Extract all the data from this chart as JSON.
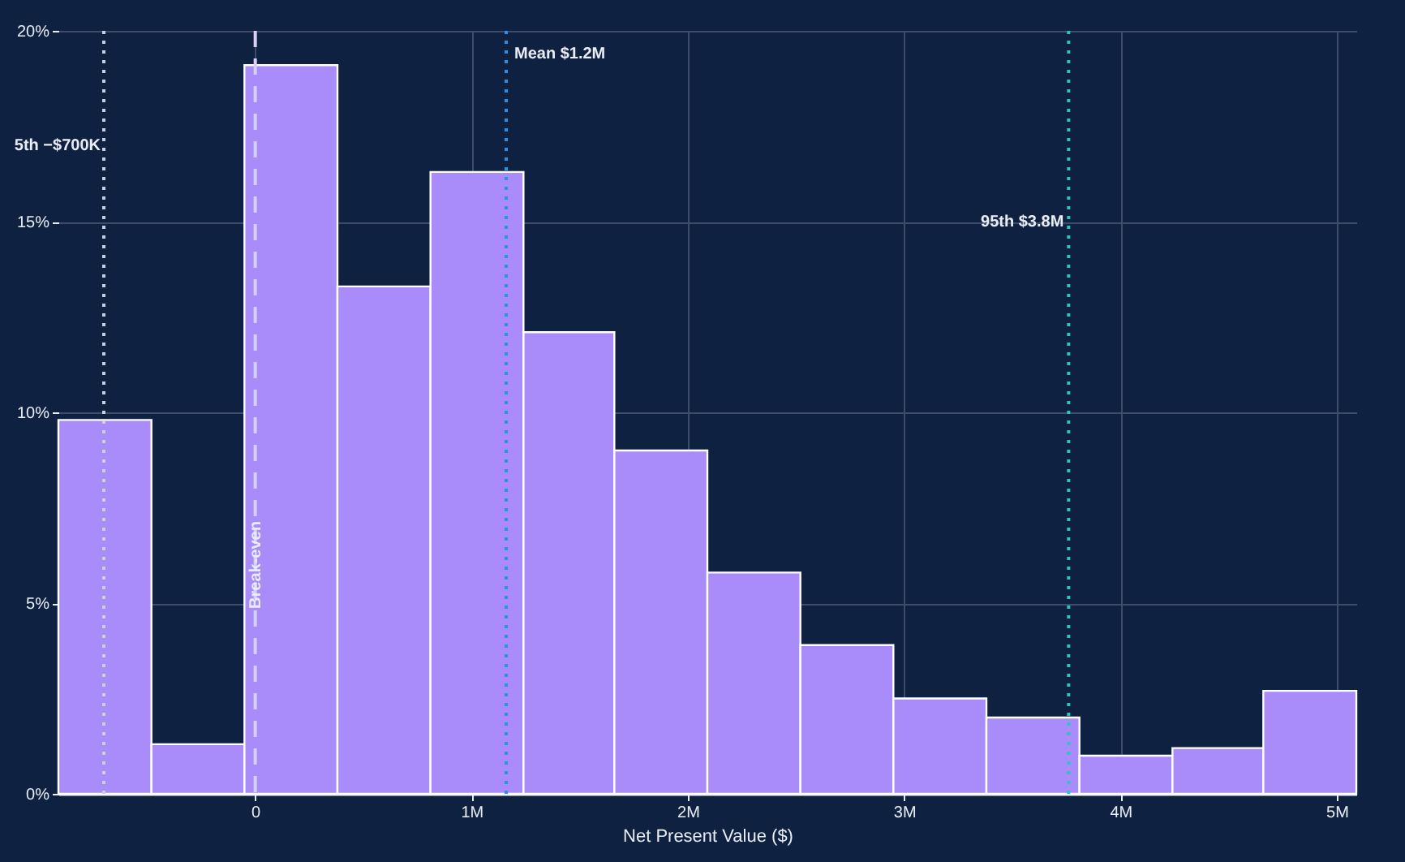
{
  "chart_data": {
    "type": "histogram",
    "xlabel": "Net Present Value ($)",
    "bins": [
      -0.91,
      -0.48,
      -0.05,
      0.38,
      0.81,
      1.24,
      1.66,
      2.09,
      2.52,
      2.95,
      3.38,
      3.81,
      4.24,
      4.66,
      5.09
    ],
    "values": [
      9.8,
      1.3,
      19.1,
      13.3,
      16.3,
      12.1,
      9.0,
      5.8,
      3.9,
      2.5,
      2.0,
      1.0,
      1.2,
      2.7
    ],
    "color": "#a98bfa",
    "xlim": [
      -0.91,
      5.09
    ],
    "ylim": [
      0,
      20
    ],
    "xticks": [
      0,
      {
        "value": 1,
        "label": "1M"
      },
      {
        "value": 2,
        "label": "2M"
      },
      {
        "value": 3,
        "label": "3M"
      },
      {
        "value": 4,
        "label": "4M"
      },
      {
        "value": 5,
        "label": "5M"
      }
    ],
    "yticks": [
      {
        "value": 0,
        "label": "0%"
      },
      {
        "value": 5,
        "label": "5%"
      },
      {
        "value": 10,
        "label": "10%"
      },
      {
        "value": 15,
        "label": "15%"
      },
      {
        "value": 20,
        "label": "20%"
      }
    ],
    "grid": true,
    "ref_lines": [
      {
        "axis": "x",
        "value": -0.7,
        "label": "5th −$700K",
        "color": "#c8d0e0",
        "line_style": "dotted"
      },
      {
        "axis": "x",
        "value": 0,
        "label": "Break-even",
        "color": "#d8cff5",
        "line_style": "dashed"
      },
      {
        "axis": "x",
        "value": 1.16,
        "label": "Mean $1.2M",
        "color": "#2f8fe0",
        "line_style": "dotted"
      },
      {
        "axis": "x",
        "value": 3.76,
        "label": "95th $3.8M",
        "color": "#2ec4c4",
        "line_style": "dotted"
      }
    ]
  }
}
